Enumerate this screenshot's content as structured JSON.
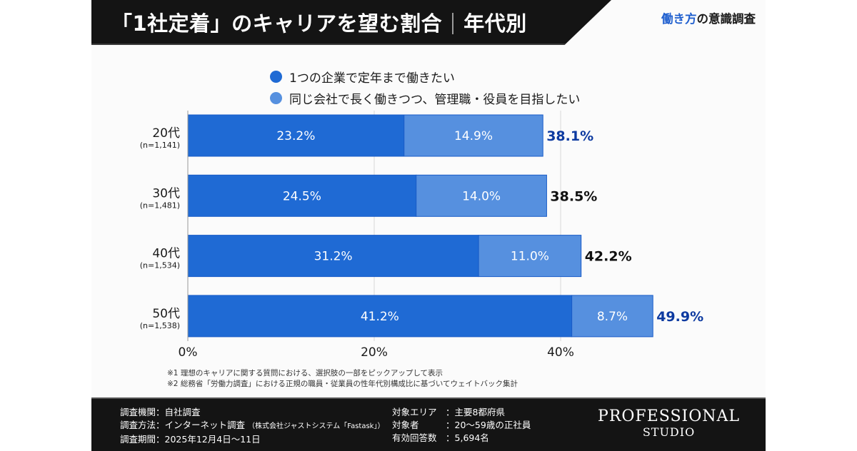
{
  "header": {
    "title_main": "「1社定着」のキャリアを望む割合",
    "title_sub": "年代別",
    "series_tag_accent": "働き方",
    "series_tag_rest": "の意識調査"
  },
  "colors": {
    "series_dark": "#1f6ad4",
    "series_light": "#5690df",
    "highlight_total": "#0d3aa0",
    "normal_total": "#111111",
    "gridline": "#d9d9d9",
    "axis": "#999999"
  },
  "chart_data": {
    "type": "bar",
    "orientation": "horizontal",
    "stacked": true,
    "title": "「1社定着」のキャリアを望む割合｜年代別",
    "categories": [
      "20代",
      "30代",
      "40代",
      "50代"
    ],
    "category_n": [
      "(n=1,141)",
      "(n=1,481)",
      "(n=1,534)",
      "(n=1,538)"
    ],
    "series": [
      {
        "name": "1つの企業で定年まで働きたい",
        "values": [
          23.2,
          24.5,
          31.2,
          41.2
        ],
        "labels": [
          "23.2%",
          "24.5%",
          "31.2%",
          "41.2%"
        ]
      },
      {
        "name": "同じ会社で長く働きつつ、管理職・役員を目指したい",
        "values": [
          14.9,
          14.0,
          11.0,
          8.7
        ],
        "labels": [
          "14.9%",
          "14.0%",
          "11.0%",
          "8.7%"
        ]
      }
    ],
    "totals": [
      38.1,
      38.5,
      42.2,
      49.9
    ],
    "total_labels": [
      "38.1%",
      "38.5%",
      "42.2%",
      "49.9%"
    ],
    "total_highlighted": [
      true,
      false,
      false,
      true
    ],
    "xlim": [
      0,
      50
    ],
    "xticks": [
      0,
      20,
      40
    ],
    "xtick_labels": [
      "0%",
      "20%",
      "40%"
    ],
    "xlabel": "",
    "ylabel": "",
    "grid": true,
    "legend_position": "top"
  },
  "legend": [
    {
      "label": "1つの企業で定年まで働きたい"
    },
    {
      "label": "同じ会社で長く働きつつ、管理職・役員を目指したい"
    }
  ],
  "notes": [
    "※1  理想のキャリアに関する質問における、選択肢の一部をピックアップして表示",
    "※2  総務省「労働力調査」における正規の職員・従業員の性年代別構成比に基づいてウェイトバック集計"
  ],
  "footer": {
    "left": [
      {
        "key": "調査機関",
        "value": "自社調査",
        "sub": ""
      },
      {
        "key": "調査方法",
        "value": "インターネット調査",
        "sub": "（株式会社ジャストシステム「Fastask」）"
      },
      {
        "key": "調査期間",
        "value": "2025年12月4日〜11日",
        "sub": ""
      }
    ],
    "right": [
      {
        "key": "対象エリア",
        "value": "主要8都府県"
      },
      {
        "key": "対象者",
        "value": "20〜59歳の正社員"
      },
      {
        "key": "有効回答数",
        "value": "5,694名"
      }
    ],
    "logo_line1": "PROFESSIONAL",
    "logo_line2": "STUDIO"
  }
}
